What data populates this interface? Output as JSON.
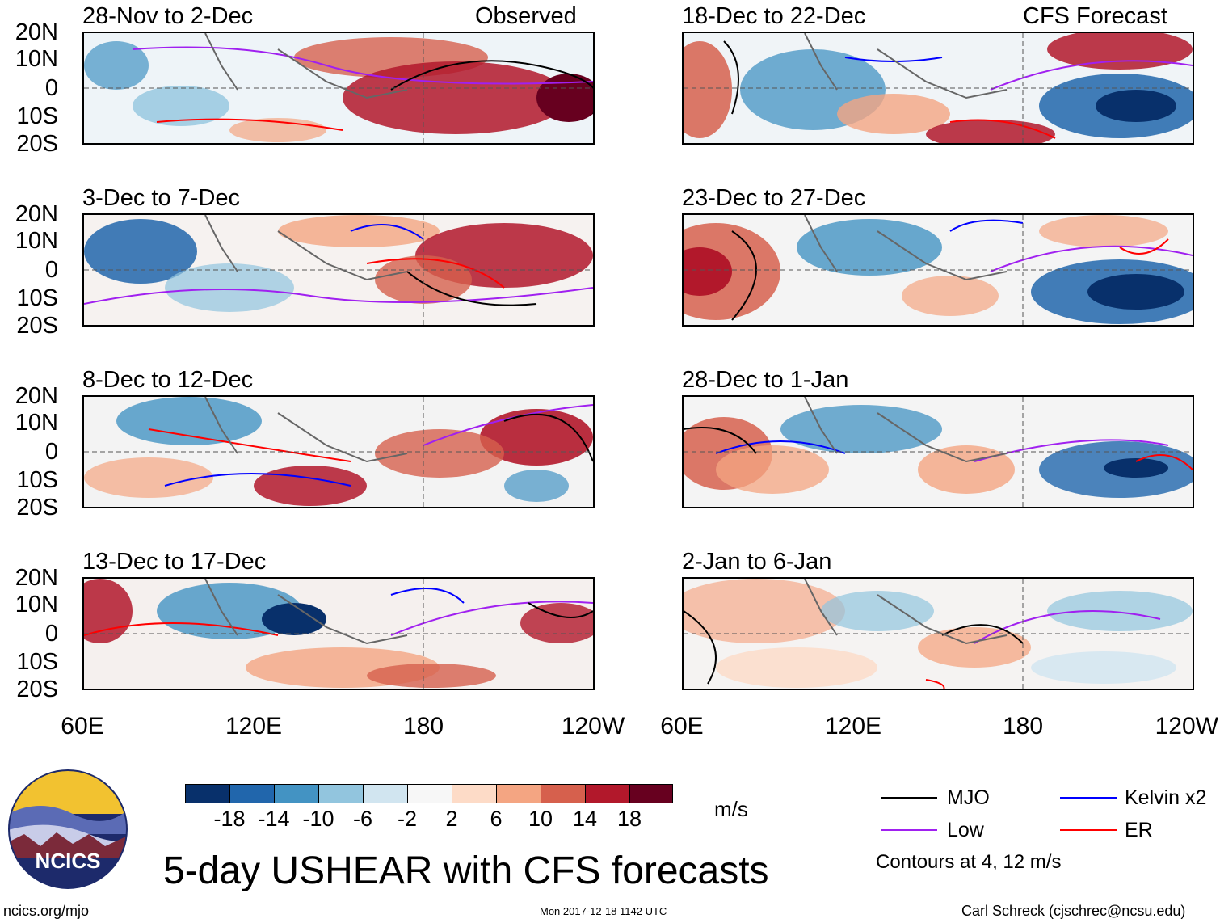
{
  "panels": [
    {
      "period": "28-Nov to 2-Dec",
      "tag": "Observed"
    },
    {
      "period": "3-Dec to 7-Dec",
      "tag": ""
    },
    {
      "period": "8-Dec to 12-Dec",
      "tag": ""
    },
    {
      "period": "13-Dec to 17-Dec",
      "tag": ""
    },
    {
      "period": "18-Dec to 22-Dec",
      "tag": "CFS Forecast"
    },
    {
      "period": "23-Dec to 27-Dec",
      "tag": ""
    },
    {
      "period": "28-Dec to 1-Jan",
      "tag": ""
    },
    {
      "period": "2-Jan to 6-Jan",
      "tag": ""
    }
  ],
  "lat_ticks": [
    "20N",
    "10N",
    "0",
    "10S",
    "20S"
  ],
  "lon_ticks": [
    "60E",
    "120E",
    "180",
    "120W"
  ],
  "colorbar": {
    "labels": [
      "-18",
      "-14",
      "-10",
      "-6",
      "-2",
      "2",
      "6",
      "10",
      "14",
      "18"
    ],
    "colors": [
      "#08306b",
      "#2166ac",
      "#4393c3",
      "#92c5de",
      "#d1e5f0",
      "#f7f7f7",
      "#fddbc7",
      "#f4a582",
      "#d6604d",
      "#b2182b",
      "#67001f"
    ],
    "units": "m/s"
  },
  "legend": {
    "mjo": "MJO",
    "mjo_color": "#000000",
    "low": "Low",
    "low_color": "#a020f0",
    "kelvin": "Kelvin x2",
    "kelvin_color": "#0000ff",
    "er": "ER",
    "er_color": "#ff0000",
    "note": "Contours at 4, 12 m/s"
  },
  "title": "5-day USHEAR with CFS forecasts",
  "logo_text": "NCICS",
  "footer": {
    "left": "ncics.org/mjo",
    "center": "Mon 2017-12-18 1142 UTC",
    "right": "Carl Schreck (cjschrec@ncsu.edu)"
  }
}
